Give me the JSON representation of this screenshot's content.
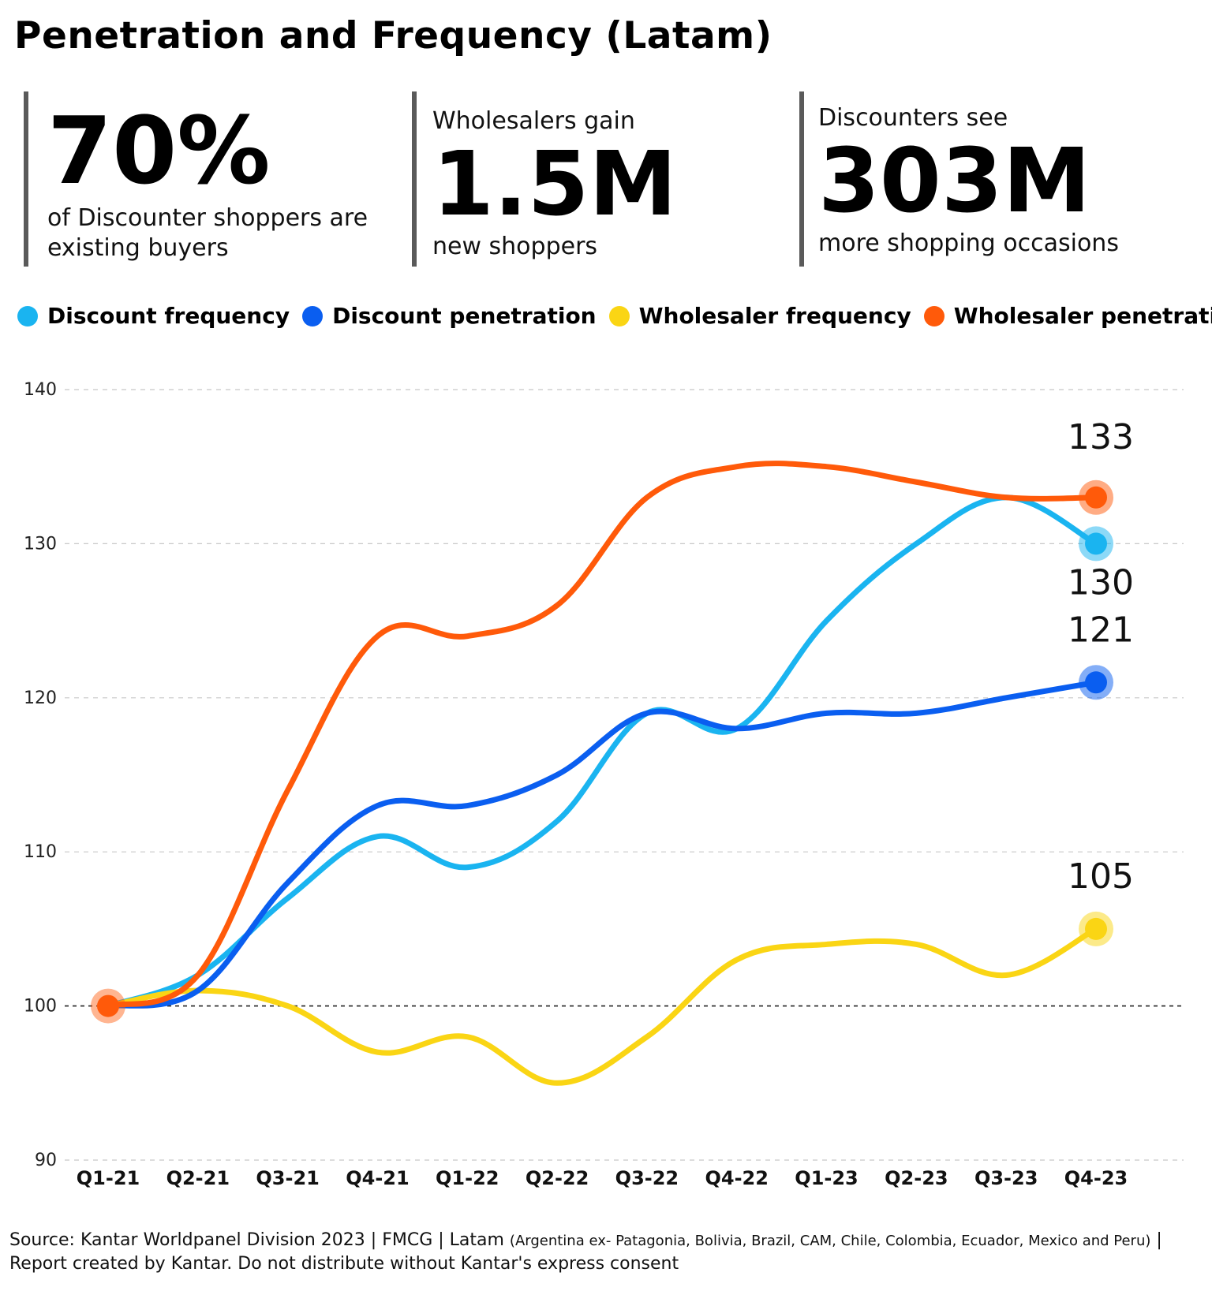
{
  "page": {
    "title": "Penetration and Frequency (Latam)"
  },
  "stats": [
    {
      "pre": "",
      "big": "70%",
      "post": "of Discounter shoppers are existing buyers"
    },
    {
      "pre": "Wholesalers gain",
      "big": "1.5M",
      "post": "new shoppers"
    },
    {
      "pre": "Discounters see",
      "big": "303M",
      "post": "more shopping occasions"
    }
  ],
  "legend": [
    {
      "label": "Discount frequency",
      "color": "#1ab4f0"
    },
    {
      "label": "Discount penetration",
      "color": "#0a5ef0"
    },
    {
      "label": "Wholesaler frequency",
      "color": "#fad514"
    },
    {
      "label": "Wholesaler penetration",
      "color": "#ff5a0a"
    }
  ],
  "chart_data": {
    "type": "line",
    "categories": [
      "Q1-21",
      "Q2-21",
      "Q3-21",
      "Q4-21",
      "Q1-22",
      "Q2-22",
      "Q3-22",
      "Q4-22",
      "Q1-23",
      "Q2-23",
      "Q3-23",
      "Q4-23"
    ],
    "ylim": [
      90,
      140
    ],
    "yticks": [
      90,
      100,
      110,
      120,
      130,
      140
    ],
    "reference_line": 100,
    "grid": true,
    "legend_position": "top",
    "series": [
      {
        "name": "Discount frequency",
        "color": "#1ab4f0",
        "values": [
          100,
          102,
          107,
          111,
          109,
          112,
          119,
          118,
          125,
          130,
          133,
          130
        ],
        "end_label": "130"
      },
      {
        "name": "Discount penetration",
        "color": "#0a5ef0",
        "values": [
          100,
          101,
          108,
          113,
          113,
          115,
          119,
          118,
          119,
          119,
          120,
          121
        ],
        "end_label": "121"
      },
      {
        "name": "Wholesaler frequency",
        "color": "#fad514",
        "values": [
          100,
          101,
          100,
          97,
          98,
          95,
          98,
          103,
          104,
          104,
          102,
          105
        ],
        "end_label": "105"
      },
      {
        "name": "Wholesaler penetration",
        "color": "#ff5a0a",
        "values": [
          100,
          102,
          114,
          124,
          124,
          126,
          133,
          135,
          135,
          134,
          133,
          133
        ],
        "end_label": "133"
      }
    ]
  },
  "source": {
    "main": "Source: Kantar Worldpanel Division 2023 | FMCG | Latam",
    "detail": "(Argentina ex- Patagonia, Bolivia, Brazil, CAM, Chile, Colombia, Ecuador, Mexico and Peru)",
    "tail": "| Report created by Kantar. Do not distribute without Kantar's express consent"
  }
}
